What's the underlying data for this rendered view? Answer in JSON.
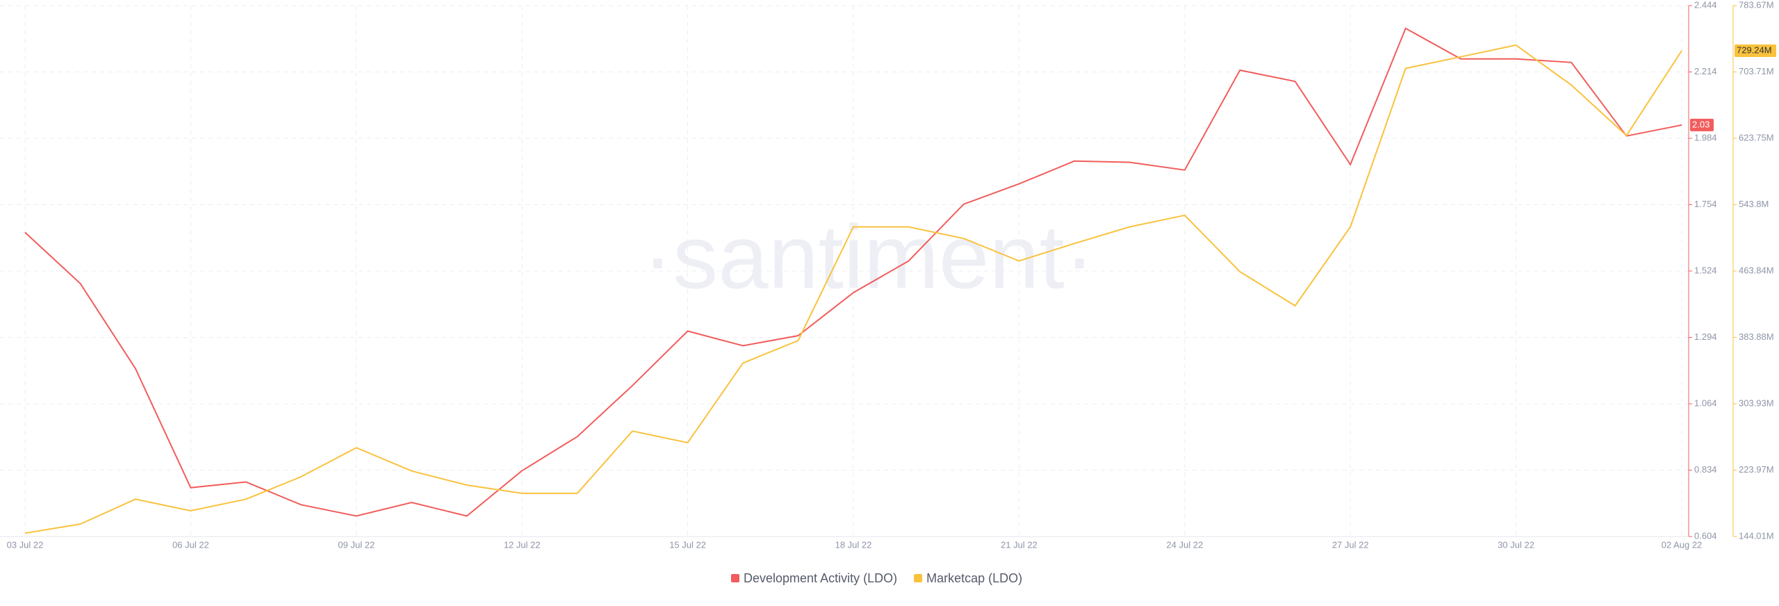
{
  "chart_data": {
    "type": "line",
    "watermark": "·santiment·",
    "categories": [
      "03 Jul 22",
      null,
      null,
      "06 Jul 22",
      null,
      null,
      "09 Jul 22",
      null,
      null,
      "12 Jul 22",
      null,
      null,
      "15 Jul 22",
      null,
      null,
      "18 Jul 22",
      null,
      null,
      "21 Jul 22",
      null,
      null,
      "24 Jul 22",
      null,
      null,
      "27 Jul 22",
      null,
      null,
      "30 Jul 22",
      null,
      null,
      "02 Aug 22"
    ],
    "ylim": [
      0.604,
      2.444
    ],
    "yticks": [
      0.604,
      0.834,
      1.064,
      1.294,
      1.524,
      1.754,
      1.984,
      2.214,
      2.444
    ],
    "y2lim": [
      144.01,
      783.67
    ],
    "y2ticks": [
      {
        "value": 144.01,
        "label": "144.01M"
      },
      {
        "value": 223.97,
        "label": "223.97M"
      },
      {
        "value": 303.93,
        "label": "303.93M"
      },
      {
        "value": 383.88,
        "label": "383.88M"
      },
      {
        "value": 463.84,
        "label": "463.84M"
      },
      {
        "value": 543.8,
        "label": "543.8M"
      },
      {
        "value": 623.75,
        "label": "623.75M"
      },
      {
        "value": 703.71,
        "label": "703.71M"
      },
      {
        "value": 783.67,
        "label": "783.67M"
      }
    ],
    "grid": true,
    "legend": "bottom",
    "series": [
      {
        "name": "Development Activity (LDO)",
        "color": "#f25c5c",
        "axis": "y",
        "values": [
          1.658,
          1.481,
          1.186,
          0.773,
          0.793,
          0.714,
          0.675,
          0.722,
          0.675,
          0.832,
          0.95,
          1.127,
          1.316,
          1.265,
          1.3,
          1.449,
          1.559,
          1.756,
          1.826,
          1.905,
          1.901,
          1.874,
          2.22,
          2.181,
          1.893,
          2.365,
          2.259,
          2.259,
          2.247,
          1.992,
          2.03
        ],
        "last_label": "2.03"
      },
      {
        "name": "Marketcap (LDO)",
        "color": "#f9c23c",
        "axis": "y2",
        "values": [
          148,
          159,
          189,
          175,
          189,
          216,
          251,
          223,
          206,
          196,
          196,
          271,
          257,
          353,
          380,
          517,
          517,
          503,
          476,
          497,
          517,
          531,
          463,
          422,
          517,
          708,
          722,
          736,
          688,
          627,
          729.24
        ],
        "last_label": "729.24M"
      }
    ]
  }
}
